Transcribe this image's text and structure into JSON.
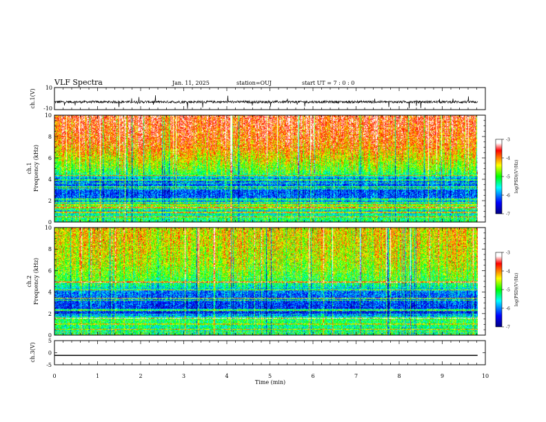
{
  "header": {
    "title": "VLF Spectra",
    "date": "Jan. 11, 2025",
    "station": "station=OUJ",
    "start": "start UT =  7 : 0 : 0"
  },
  "chart_data": [
    {
      "type": "line",
      "panel": "ch1-waveform",
      "ylabel": "ch.1(V)",
      "ylim": [
        -10,
        10
      ],
      "yticks": [
        "10",
        "-10"
      ],
      "xlim": [
        0,
        10
      ],
      "baseline": -3,
      "color": "#000000"
    },
    {
      "type": "heatmap",
      "panel": "ch1-spectrogram",
      "ylabel": "ch.1\nFrequency (kHz)",
      "ylabel_lines": [
        "ch.1",
        "Frequency (kHz)"
      ],
      "ylim": [
        0,
        10
      ],
      "yticks": [
        "0",
        "2",
        "4",
        "6",
        "8",
        "10"
      ],
      "xlim": [
        0,
        9.82
      ],
      "colorbar": {
        "label": "log(PSD)(V²/Hz)",
        "range": [
          -7,
          -3
        ],
        "ticks": [
          "-3",
          "-4",
          "-5",
          "-6",
          "-7"
        ]
      },
      "profile_freq_khz": [
        0.3,
        1.0,
        1.5,
        2.0,
        3.0,
        4.0,
        4.5,
        5.0,
        6.0,
        7.0,
        8.0,
        9.0,
        10.0
      ],
      "profile_level": [
        -5.2,
        -5.6,
        -4.9,
        -6.1,
        -6.2,
        -6.0,
        -5.1,
        -4.8,
        -4.4,
        -4.0,
        -3.8,
        -3.7,
        -3.6
      ],
      "lines_khz": [
        0.45,
        0.9,
        1.35,
        1.6,
        2.15,
        3.1,
        4.35
      ]
    },
    {
      "type": "heatmap",
      "panel": "ch2-spectrogram",
      "ylabel": "ch.2\nFrequency (kHz)",
      "ylabel_lines": [
        "ch.2",
        "Frequency (kHz)"
      ],
      "ylim": [
        0,
        10
      ],
      "yticks": [
        "0",
        "2",
        "4",
        "6",
        "8",
        "10"
      ],
      "xlim": [
        0,
        9.82
      ],
      "colorbar": {
        "label": "log(PSD)(V²/Hz)",
        "range": [
          -7,
          -3
        ],
        "ticks": [
          "-3",
          "-4",
          "-5",
          "-6",
          "-7"
        ]
      },
      "profile_freq_khz": [
        0.3,
        1.0,
        1.5,
        2.0,
        3.0,
        4.0,
        4.5,
        5.0,
        6.0,
        7.0,
        8.0,
        9.0,
        10.0
      ],
      "profile_level": [
        -5.4,
        -5.2,
        -5.0,
        -6.4,
        -6.2,
        -6.0,
        -5.4,
        -5.0,
        -4.7,
        -4.5,
        -4.4,
        -4.3,
        -4.3
      ],
      "lines_khz": [
        0.5,
        1.0,
        1.55,
        2.3,
        3.4,
        4.2,
        4.95
      ]
    },
    {
      "type": "line",
      "panel": "ch3-waveform",
      "ylabel": "ch.3(V)",
      "ylim": [
        -5,
        5
      ],
      "yticks": [
        "5",
        "0",
        "-5"
      ],
      "xlim": [
        0,
        10
      ],
      "values": [
        -1.1,
        -1.1
      ],
      "x": [
        0,
        9.82
      ],
      "color": "#000000"
    },
    {
      "type": "axis",
      "xlabel": "Time (min)",
      "xlim": [
        0,
        10
      ],
      "xticks": [
        "0",
        "1",
        "2",
        "3",
        "4",
        "5",
        "6",
        "7",
        "8",
        "9",
        "10"
      ]
    }
  ]
}
